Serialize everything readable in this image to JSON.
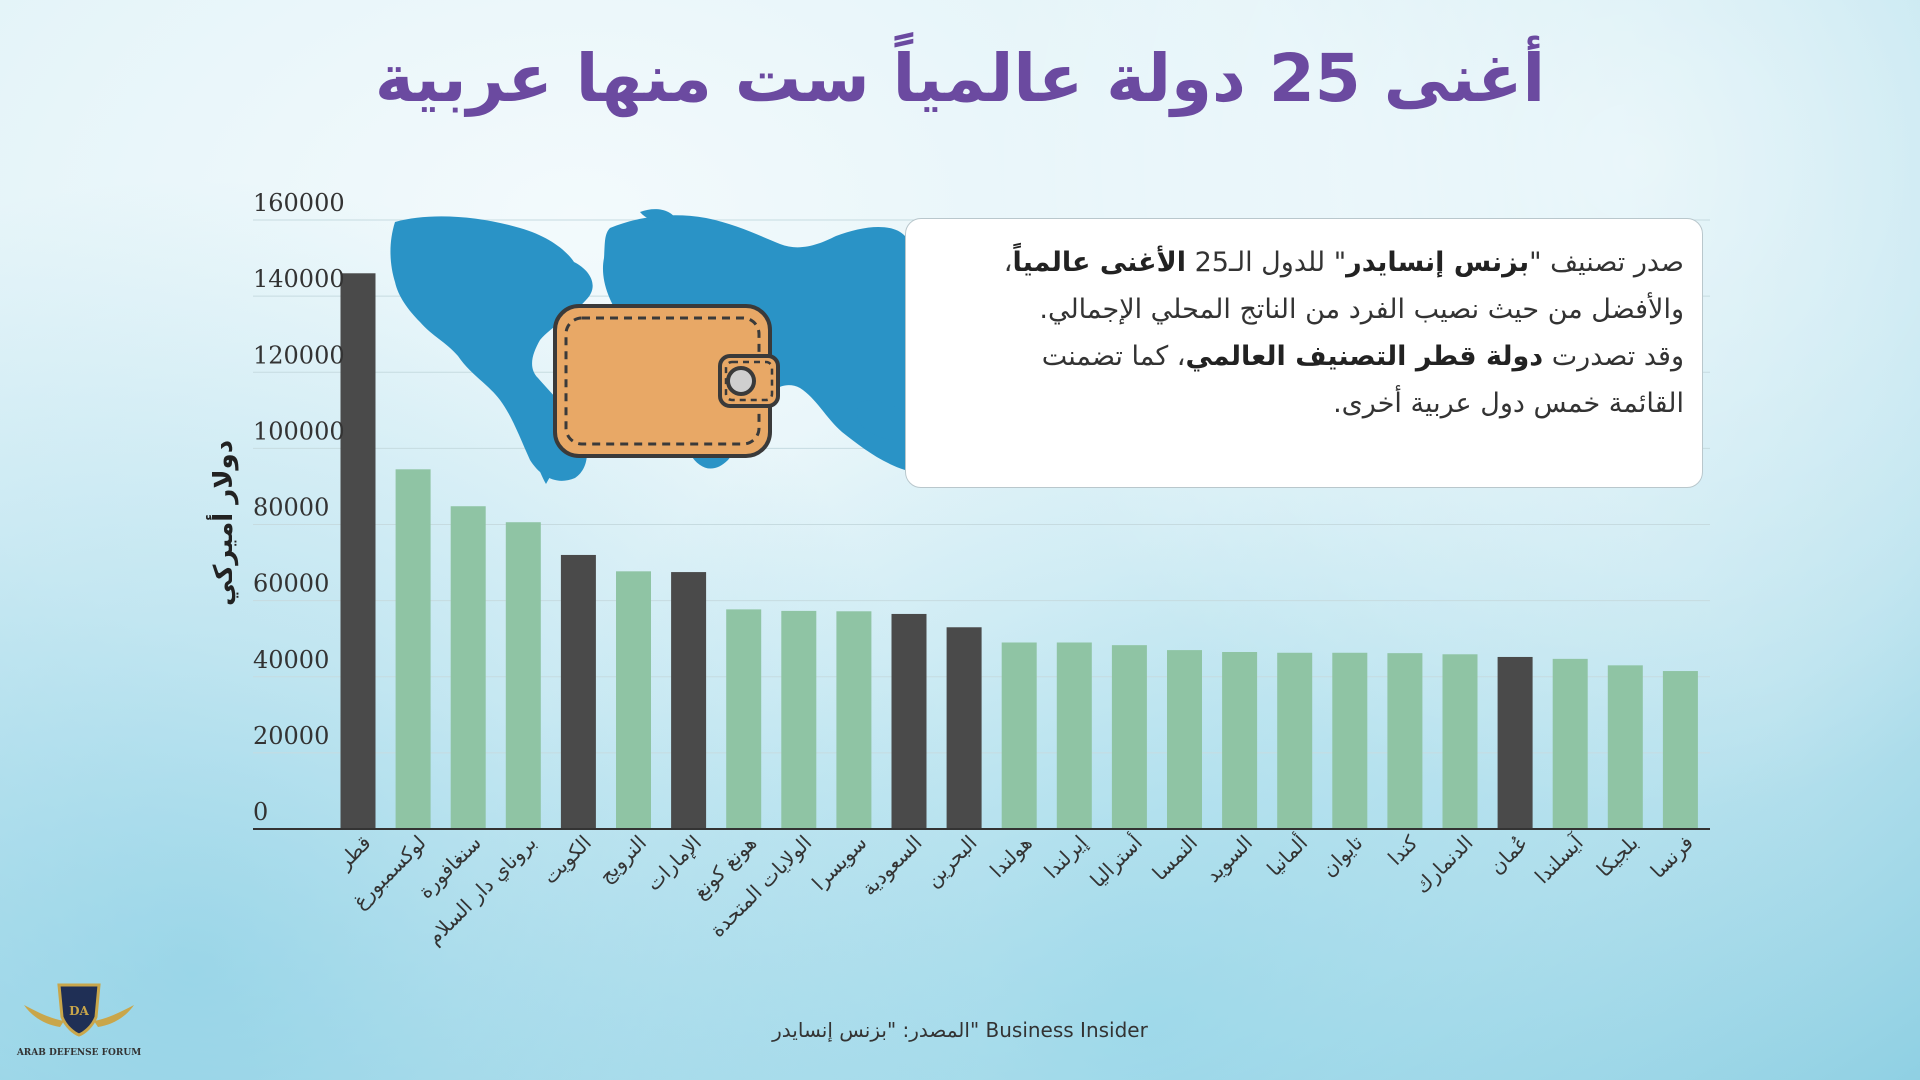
{
  "title": "أغنى 25 دولة عالمياً ست منها عربية",
  "info": {
    "l1_a": "صدر تصنيف \"",
    "l1_b": "بزنس إنسايدر",
    "l1_c": "\" للدول الـ25 ",
    "l1_d": "الأغنى عالمياً",
    "l1_e": "،",
    "l2": "والأفضل من حيث نصيب الفرد من الناتج المحلي الإجمالي.",
    "l3_a": "وقد تصدرت ",
    "l3_b": "دولة قطر التصنيف العالمي",
    "l3_c": "، كما تضمنت",
    "l4": "القائمة خمس دول عربية أخرى."
  },
  "source": "المصدر: \"بزنس إنسايدر\" Business Insider",
  "logo_text": "ARAB DEFENSE FORUM",
  "colors": {
    "arab": "#4a4a4a",
    "other": "#8fc4a4",
    "title": "#6b4aa0",
    "map": "#2a93c6",
    "wallet": "#e8a866"
  },
  "icons": [
    "world-map-icon",
    "wallet-icon",
    "forum-logo-icon"
  ],
  "chart_data": {
    "type": "bar",
    "ylabel": "دولار أميركي",
    "ylim": [
      0,
      160000
    ],
    "yticks": [
      0,
      20000,
      40000,
      60000,
      80000,
      100000,
      120000,
      140000,
      160000
    ],
    "grid": true,
    "categories": [
      "قطر",
      "لوكسمبورغ",
      "سنغافورة",
      "بروناي دار السلام",
      "الكويت",
      "النرويج",
      "الإمارات",
      "هونغ كونغ",
      "الولايات المتحدة",
      "سويسرا",
      "السعودية",
      "البحرين",
      "هولندا",
      "إيرلندا",
      "أستراليا",
      "النمسا",
      "السويد",
      "ألمانيا",
      "تايوان",
      "كندا",
      "الدنمارك",
      "عُمان",
      "آيسلندا",
      "بلجيكا",
      "فرنسا"
    ],
    "values": [
      146000,
      94500,
      84800,
      80600,
      72000,
      67700,
      67500,
      57700,
      57300,
      57200,
      56500,
      53000,
      49000,
      49000,
      48300,
      47000,
      46500,
      46300,
      46300,
      46200,
      45900,
      45200,
      44700,
      43000,
      41500
    ],
    "highlight": [
      true,
      false,
      false,
      false,
      true,
      false,
      true,
      false,
      false,
      false,
      true,
      true,
      false,
      false,
      false,
      false,
      false,
      false,
      false,
      false,
      false,
      true,
      false,
      false,
      false
    ]
  }
}
